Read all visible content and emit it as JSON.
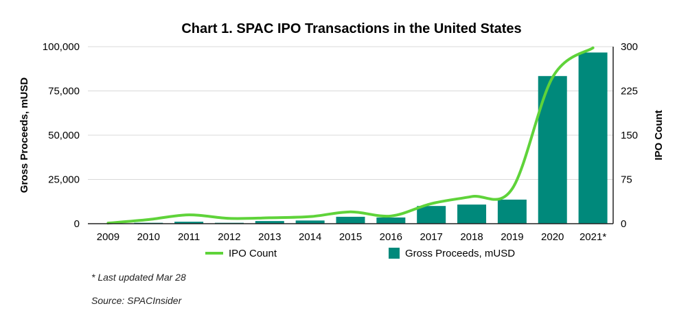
{
  "chart_data": {
    "type": "bar",
    "title": "Chart 1. SPAC IPO Transactions in the United States",
    "categories": [
      "2009",
      "2010",
      "2011",
      "2012",
      "2013",
      "2014",
      "2015",
      "2016",
      "2017",
      "2018",
      "2019",
      "2020",
      "2021*"
    ],
    "series": [
      {
        "name": "Gross Proceeds, mUSD",
        "type": "bar",
        "axis": "left",
        "color": "#00897B",
        "values": [
          36,
          500,
          1100,
          500,
          1500,
          1800,
          3900,
          3500,
          10000,
          10800,
          13600,
          83400,
          96700
        ]
      },
      {
        "name": "IPO Count",
        "type": "line",
        "axis": "right",
        "color": "#5FD33A",
        "values": [
          1,
          7,
          15,
          9,
          10,
          12,
          20,
          13,
          34,
          46,
          59,
          248,
          298
        ]
      }
    ],
    "ylabel": "Gross Proceeds, mUSD",
    "ylim": [
      0,
      100000
    ],
    "yticks": [
      "0",
      "25,000",
      "50,000",
      "75,000",
      "100,000"
    ],
    "y2label": "IPO Count",
    "y2lim": [
      0,
      300
    ],
    "y2ticks": [
      "0",
      "75",
      "150",
      "225",
      "300"
    ],
    "grid": true,
    "legend_position": "bottom"
  },
  "notes": {
    "updated": "* Last updated Mar 28",
    "source": "Source: SPACInsider"
  }
}
